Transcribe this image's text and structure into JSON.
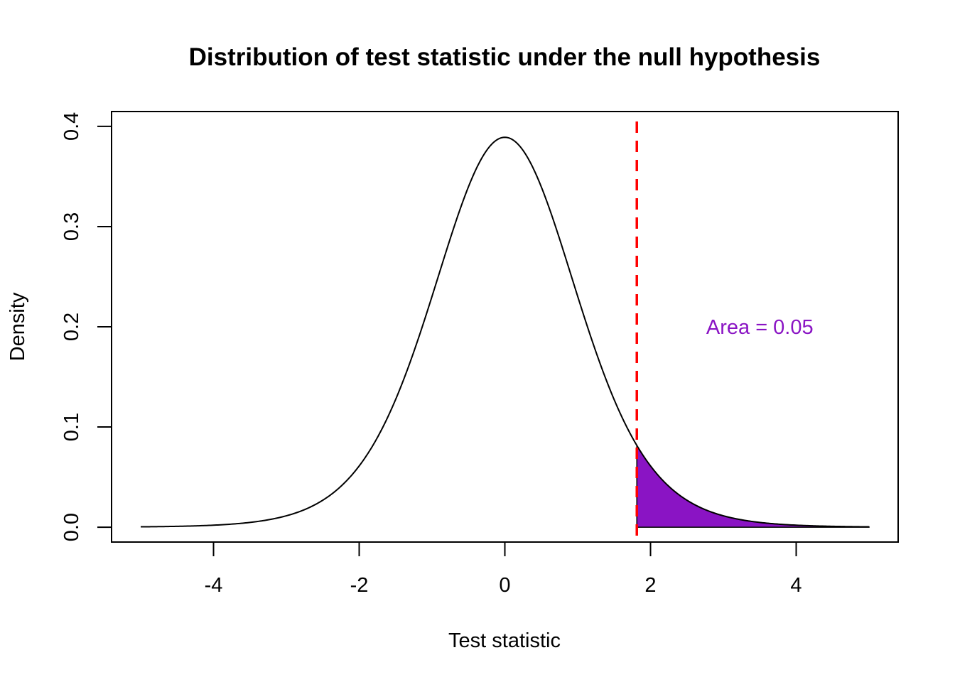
{
  "chart_data": {
    "type": "line",
    "title": "Distribution of test statistic under the null hypothesis",
    "xlabel": "Test statistic",
    "ylabel": "Density",
    "xlim": [
      -5.4,
      5.4
    ],
    "ylim": [
      -0.0148,
      0.4148
    ],
    "x_ticks": [
      -4,
      -2,
      0,
      2,
      4
    ],
    "y_ticks": [
      0.0,
      0.1,
      0.2,
      0.3,
      0.4
    ],
    "x_tick_labels": [
      "-4",
      "-2",
      "0",
      "2",
      "4"
    ],
    "y_tick_labels": [
      "0.0",
      "0.1",
      "0.2",
      "0.3",
      "0.4"
    ],
    "grid": false,
    "curve": {
      "distribution": "Student t",
      "df": 10,
      "x_range": [
        -5,
        5
      ],
      "peak_density": 0.389,
      "color": "#000000"
    },
    "critical_value": {
      "x": 1.812,
      "color": "#ff0000",
      "style": "dashed"
    },
    "shaded_region": {
      "x_from": 1.812,
      "x_to": 5,
      "fill": "#8a14c4"
    },
    "annotation": {
      "text": "Area = 0.05",
      "x": 3.5,
      "y": 0.2,
      "color": "#8a14c4"
    }
  }
}
